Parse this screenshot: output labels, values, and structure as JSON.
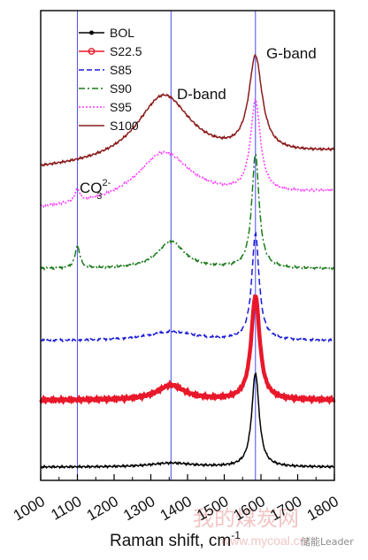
{
  "chart_data": {
    "type": "line",
    "title": "",
    "xlabel": "Raman shift, cm",
    "xlabel_superscript": "-1",
    "ylabel": "",
    "xlim": [
      1000,
      1800
    ],
    "x_ticks": [
      "1000",
      "1100",
      "1200",
      "1300",
      "1400",
      "1500",
      "1600",
      "1700",
      "1800"
    ],
    "grid": false,
    "legend_position": "top-left",
    "vertical_lines": [
      1100,
      1355,
      1585
    ],
    "annotations": {
      "carbonate_base": "CO",
      "carbonate_sub": "3",
      "carbonate_sup": "2-",
      "d_band": "D-band",
      "g_band": "G-band"
    },
    "series": [
      {
        "name": "BOL",
        "color": "#000000",
        "style": "solid-marker",
        "baseline": 0.0,
        "peaks": [
          [
            1355,
            0.08,
            70
          ],
          [
            1585,
            1.9,
            12
          ]
        ]
      },
      {
        "name": "S22.5",
        "color": "#e8182a",
        "style": "solid-circle",
        "baseline": 1.35,
        "peaks": [
          [
            1355,
            0.3,
            45
          ],
          [
            1585,
            2.1,
            14
          ]
        ]
      },
      {
        "name": "S85",
        "color": "#1a1ad8",
        "style": "dashed",
        "baseline": 2.55,
        "peaks": [
          [
            1355,
            0.18,
            80
          ],
          [
            1585,
            2.15,
            12
          ]
        ]
      },
      {
        "name": "S90",
        "color": "#1a7a1a",
        "style": "dashdot",
        "baseline": 4.0,
        "peaks": [
          [
            1100,
            0.45,
            8
          ],
          [
            1355,
            0.55,
            45
          ],
          [
            1585,
            2.3,
            12
          ]
        ]
      },
      {
        "name": "S95",
        "color": "#ff33ff",
        "style": "dotted",
        "baseline": 5.2,
        "peaks": [
          [
            1100,
            0.25,
            8
          ],
          [
            1335,
            1.0,
            90
          ],
          [
            1585,
            1.85,
            16
          ]
        ]
      },
      {
        "name": "S100",
        "color": "#8b1a1a",
        "style": "solid",
        "baseline": 6.0,
        "peaks": [
          [
            1335,
            1.35,
            90
          ],
          [
            1585,
            1.9,
            22
          ]
        ]
      }
    ]
  },
  "watermark": {
    "site_cn": "我的煤炭网",
    "site_url": "www.mycoal.cn",
    "credit": "储能Leader"
  }
}
